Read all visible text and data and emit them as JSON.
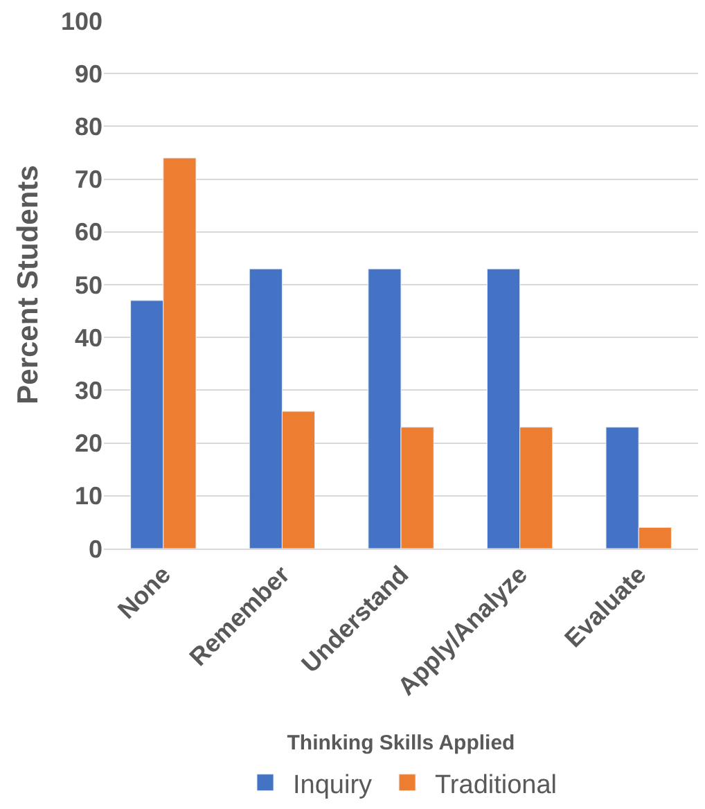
{
  "chart_data": {
    "type": "bar",
    "xlabel": "Thinking Skills Applied",
    "ylabel": "Percent Students",
    "categories": [
      "None",
      "Remember",
      "Understand",
      "Apply/Analyze",
      "Evaluate"
    ],
    "series": [
      {
        "name": "Inquiry",
        "color": "#4472c4",
        "values": [
          47,
          53,
          53,
          53,
          23
        ]
      },
      {
        "name": "Traditional",
        "color": "#ed7d31",
        "values": [
          74,
          26,
          23,
          23,
          4
        ]
      }
    ],
    "ylim": [
      0,
      100
    ],
    "yticks": [
      0,
      10,
      20,
      30,
      40,
      50,
      60,
      70,
      80,
      90,
      100
    ],
    "grid": "y",
    "legend": "bottom"
  }
}
